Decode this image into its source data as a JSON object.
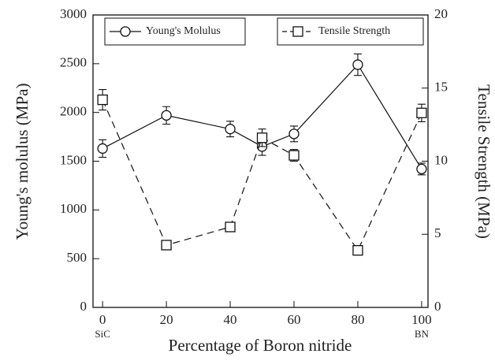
{
  "chart_data": {
    "type": "line",
    "xlabel": "Percentage of Boron nitride",
    "ylabel": "Young's molulus (MPa)",
    "y2label": "Tensile Strength (MPa)",
    "x": [
      0,
      20,
      40,
      50,
      60,
      80,
      100
    ],
    "series": [
      {
        "name": "Young's Molulus",
        "color": "#111111",
        "marker": "circle",
        "dash": false,
        "values": [
          1630,
          1970,
          1830,
          1650,
          1780,
          2490,
          1420
        ],
        "errors": [
          90,
          90,
          80,
          90,
          80,
          110,
          60
        ]
      },
      {
        "name": "Tensile Strength",
        "color": "#111111",
        "marker": "square",
        "dash": true,
        "axis": "y2",
        "values": [
          14.2,
          4.26,
          5.5,
          11.6,
          10.4,
          3.9,
          13.3
        ],
        "errors": [
          0.7,
          0.25,
          0.25,
          0.6,
          0.4,
          0.3,
          0.6
        ]
      }
    ],
    "xlim": [
      -3,
      102
    ],
    "xticks": [
      0,
      20,
      40,
      60,
      80,
      100
    ],
    "ylim": [
      0,
      3000
    ],
    "yticks": [
      0,
      500,
      1000,
      1500,
      2000,
      2500,
      3000
    ],
    "y2lim": [
      0,
      20
    ],
    "y2ticks": [
      0,
      5,
      10,
      15,
      20
    ],
    "annotations": [
      {
        "text": "SiC",
        "x": 0
      },
      {
        "text": "BN",
        "x": 100
      }
    ],
    "grid": false
  }
}
